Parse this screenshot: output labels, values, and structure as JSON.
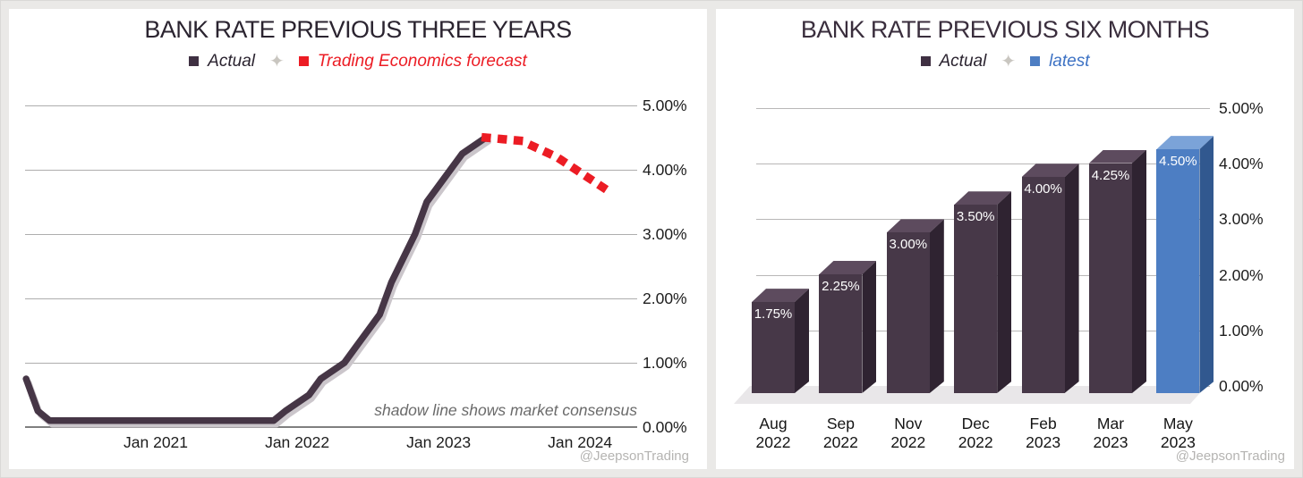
{
  "watermark": "@JeepsonTrading",
  "chart_data": [
    {
      "id": "bank_rate_three_years",
      "type": "line",
      "title": "BANK RATE PREVIOUS THREE YEARS",
      "legend": [
        {
          "name": "Actual",
          "color": "#3f3042",
          "style": "solid"
        },
        {
          "name": "Trading Economics forecast",
          "color": "#ec1c24",
          "style": "dotted"
        }
      ],
      "legend_separator": "✦",
      "annotation": "shadow line shows market consensus",
      "x_axis": {
        "ticks": [
          "Jan 2021",
          "Jan 2022",
          "Jan 2023",
          "Jan 2024"
        ],
        "grid": false
      },
      "y_axis": {
        "ticks": [
          "5.00%",
          "4.00%",
          "3.00%",
          "2.00%",
          "1.00%",
          "0.00%"
        ],
        "min": 0,
        "max": 5,
        "grid": true
      },
      "series": [
        {
          "name": "Actual",
          "color": "#463646",
          "points": [
            [
              "Feb 2020",
              0.75
            ],
            [
              "Mar 2020",
              0.25
            ],
            [
              "Apr 2020",
              0.1
            ],
            [
              "Nov 2021",
              0.1
            ],
            [
              "Dec 2021",
              0.25
            ],
            [
              "Feb 2022",
              0.5
            ],
            [
              "Mar 2022",
              0.75
            ],
            [
              "May 2022",
              1.0
            ],
            [
              "Jun 2022",
              1.25
            ],
            [
              "Aug 2022",
              1.75
            ],
            [
              "Sep 2022",
              2.25
            ],
            [
              "Nov 2022",
              3.0
            ],
            [
              "Dec 2022",
              3.5
            ],
            [
              "Feb 2023",
              4.0
            ],
            [
              "Mar 2023",
              4.25
            ],
            [
              "May 2023",
              4.5
            ]
          ]
        },
        {
          "name": "Trading Economics forecast",
          "color": "#ec1c24",
          "points": [
            [
              "May 2023",
              4.5
            ],
            [
              "Aug 2023",
              4.45
            ],
            [
              "Nov 2023",
              4.2
            ],
            [
              "Mar 2024",
              3.72
            ]
          ]
        },
        {
          "name": "market consensus shadow",
          "color": "#cbc6cb",
          "points": "same-as-Actual-offset"
        }
      ]
    },
    {
      "id": "bank_rate_six_months",
      "type": "bar",
      "title": "BANK RATE PREVIOUS SIX MONTHS",
      "legend": [
        {
          "name": "Actual",
          "color": "#3f3042"
        },
        {
          "name": "latest",
          "color": "#4d7ec3"
        }
      ],
      "legend_separator": "✦",
      "categories": [
        "Aug 2022",
        "Sep 2022",
        "Nov 2022",
        "Dec 2022",
        "Feb 2023",
        "Mar 2023",
        "May 2023"
      ],
      "values": [
        1.75,
        2.25,
        3.0,
        3.5,
        4.0,
        4.25,
        4.5
      ],
      "bar_labels": [
        "1.75%",
        "2.25%",
        "3.00%",
        "3.50%",
        "4.00%",
        "4.25%",
        "4.50%"
      ],
      "highlight_index": 6,
      "colors": {
        "actual_front": "#473848",
        "actual_top": "#5d4b5e",
        "actual_side": "#2f2331",
        "latest_front": "#4d7ec3",
        "latest_top": "#7ba3d8",
        "latest_side": "#31588f"
      },
      "y_axis": {
        "ticks": [
          "5.00%",
          "4.00%",
          "3.00%",
          "2.00%",
          "1.00%",
          "0.00%"
        ],
        "min": 0,
        "max": 5,
        "grid": true
      }
    }
  ]
}
